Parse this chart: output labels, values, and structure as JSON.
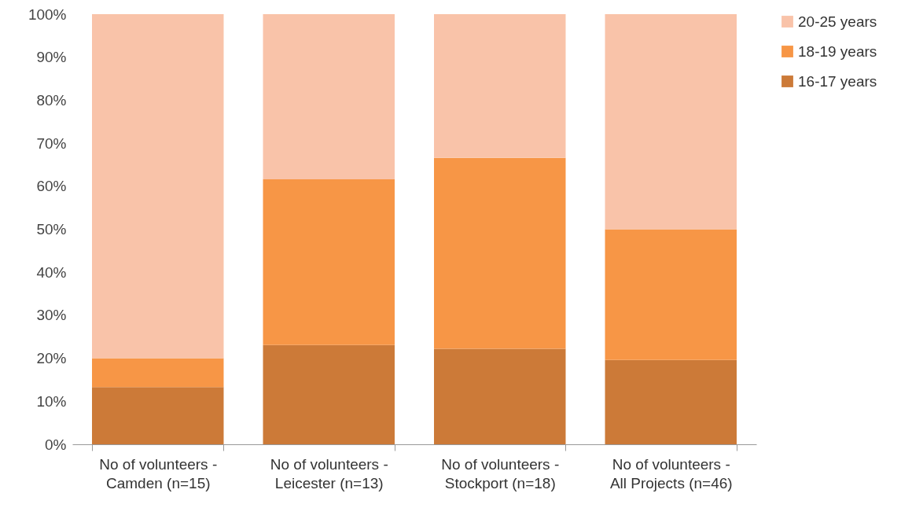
{
  "chart_data": {
    "type": "bar",
    "stacked": true,
    "categories": [
      "No of volunteers -\nCamden (n=15)",
      "No of volunteers -\nLeicester (n=13)",
      "No of volunteers -\nStockport (n=18)",
      "No of volunteers -\nAll Projects (n=46)"
    ],
    "series": [
      {
        "name": "16-17 years",
        "color": "#cc7a38",
        "values": [
          13.3,
          23.1,
          22.2,
          19.6
        ]
      },
      {
        "name": "18-19 years",
        "color": "#f79646",
        "values": [
          6.7,
          38.5,
          44.4,
          30.4
        ]
      },
      {
        "name": "20-25 years",
        "color": "#f9c3a9",
        "values": [
          80,
          38.4,
          33.4,
          50
        ]
      }
    ],
    "ylim": [
      0,
      100
    ],
    "yticks": [
      {
        "value": 0,
        "label": "0%"
      },
      {
        "value": 10,
        "label": "10%"
      },
      {
        "value": 20,
        "label": "20%"
      },
      {
        "value": 30,
        "label": "30%"
      },
      {
        "value": 40,
        "label": "40%"
      },
      {
        "value": 50,
        "label": "50%"
      },
      {
        "value": 60,
        "label": "60%"
      },
      {
        "value": 70,
        "label": "70%"
      },
      {
        "value": 80,
        "label": "80%"
      },
      {
        "value": 90,
        "label": "90%"
      },
      {
        "value": 100,
        "label": "100%"
      }
    ],
    "grid": false,
    "legend": "right"
  }
}
